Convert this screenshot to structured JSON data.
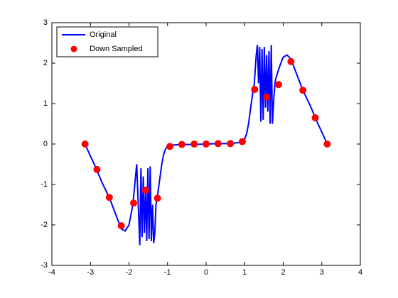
{
  "chart_data": {
    "type": "line",
    "xlim": [
      -4,
      4
    ],
    "xticks": [
      -4,
      -3,
      -2,
      -1,
      0,
      1,
      2,
      3,
      4
    ],
    "ylim": [
      -3,
      3
    ],
    "yticks": [
      -3,
      -2,
      -1,
      0,
      1,
      2,
      3
    ],
    "legend": "upper left",
    "series": [
      {
        "name": "Original",
        "color": "#0000ff",
        "style": "line",
        "x": [
          -3.14,
          -3.0,
          -2.9,
          -2.7,
          -2.5,
          -2.3,
          -2.2,
          -2.1,
          -2.0,
          -1.9,
          -1.8,
          -1.76,
          -1.72,
          -1.69,
          -1.66,
          -1.63,
          -1.6,
          -1.57,
          -1.54,
          -1.51,
          -1.48,
          -1.45,
          -1.42,
          -1.39,
          -1.36,
          -1.33,
          -1.3,
          -1.25,
          -1.2,
          -1.15,
          -1.1,
          -1.05,
          -1.0,
          -0.9,
          -0.8,
          -0.6,
          -0.3,
          0,
          0.3,
          0.6,
          0.8,
          0.9,
          1.0,
          1.05,
          1.1,
          1.15,
          1.2,
          1.25,
          1.3,
          1.33,
          1.36,
          1.39,
          1.42,
          1.45,
          1.48,
          1.51,
          1.54,
          1.57,
          1.6,
          1.63,
          1.66,
          1.69,
          1.72,
          1.76,
          1.8,
          1.9,
          2.0,
          2.1,
          2.2,
          2.3,
          2.5,
          2.7,
          2.9,
          3.0,
          3.14
        ],
        "values": [
          0,
          -0.3,
          -0.5,
          -0.95,
          -1.35,
          -1.85,
          -2.1,
          -2.15,
          -2.0,
          -1.5,
          -0.5,
          -1.5,
          -2.5,
          -0.6,
          -2.3,
          -0.8,
          -2.2,
          -1.1,
          -2.4,
          -0.6,
          -2.35,
          -0.55,
          -2.4,
          -1.5,
          -2.45,
          -2.2,
          -1.5,
          -1.2,
          -0.85,
          -0.5,
          -0.25,
          -0.12,
          -0.05,
          -0.03,
          -0.02,
          -0.01,
          -0.01,
          0,
          0.01,
          0.01,
          0.03,
          0.05,
          0.12,
          0.25,
          0.5,
          0.85,
          1.2,
          1.5,
          2.2,
          2.45,
          1.5,
          2.4,
          0.55,
          2.35,
          0.6,
          2.4,
          0.9,
          2.2,
          0.8,
          2.3,
          0.5,
          2.45,
          0.5,
          1.2,
          1.6,
          1.9,
          2.15,
          2.2,
          2.1,
          1.85,
          1.35,
          0.95,
          0.5,
          0.3,
          0
        ]
      },
      {
        "name": "Down Sampled",
        "color": "#ff0000",
        "style": "marker",
        "x": [
          -3.14,
          -2.83,
          -2.51,
          -2.2,
          -1.88,
          -1.57,
          -1.26,
          -0.94,
          -0.63,
          -0.31,
          0,
          0.31,
          0.63,
          0.94,
          1.26,
          1.57,
          1.88,
          2.2,
          2.51,
          2.83,
          3.14
        ],
        "values": [
          0,
          -0.63,
          -1.32,
          -2.02,
          -1.46,
          -1.14,
          -1.34,
          -0.06,
          -0.01,
          0,
          0,
          0.01,
          0.01,
          0.06,
          1.35,
          1.16,
          1.47,
          2.04,
          1.33,
          0.65,
          0
        ]
      }
    ]
  }
}
